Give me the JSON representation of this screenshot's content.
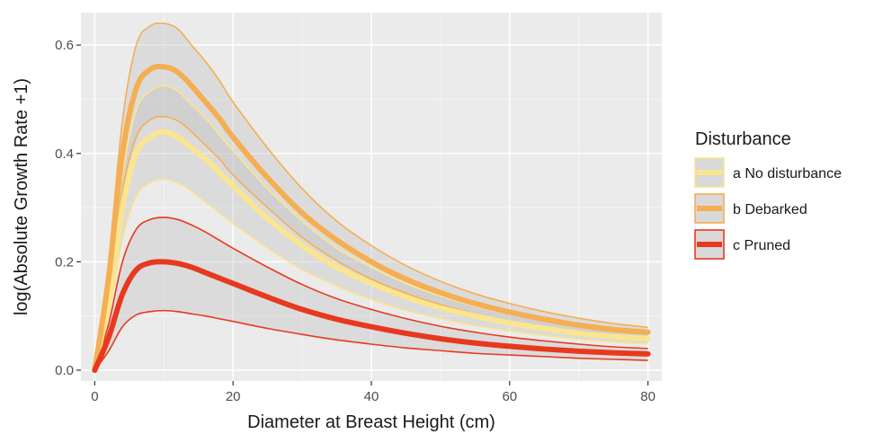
{
  "chart_data": {
    "type": "line",
    "xlabel": "Diameter at Breast Height (cm)",
    "ylabel": "log(Absolute Growth Rate +1)",
    "xlim": [
      -2,
      82
    ],
    "ylim": [
      -0.02,
      0.66
    ],
    "x_ticks": [
      0,
      20,
      40,
      60,
      80
    ],
    "y_ticks": [
      0.0,
      0.2,
      0.4,
      0.6
    ],
    "x_tick_labels": [
      "0",
      "20",
      "40",
      "60",
      "80"
    ],
    "y_tick_labels": [
      "0.0",
      "0.2",
      "0.4",
      "0.6"
    ],
    "grid": true,
    "legend": {
      "title": "Disturbance",
      "position": "right"
    },
    "x": [
      0,
      2,
      4,
      6,
      8,
      10,
      12,
      14,
      16,
      18,
      20,
      25,
      30,
      35,
      40,
      45,
      50,
      55,
      60,
      65,
      70,
      75,
      80
    ],
    "series": [
      {
        "name": "a No disturbance",
        "color": "#fbe58f",
        "values": [
          0.0,
          0.13,
          0.3,
          0.4,
          0.43,
          0.44,
          0.43,
          0.41,
          0.39,
          0.365,
          0.34,
          0.28,
          0.23,
          0.19,
          0.16,
          0.135,
          0.115,
          0.1,
          0.087,
          0.077,
          0.068,
          0.062,
          0.058
        ],
        "lower": [
          0.0,
          0.1,
          0.24,
          0.32,
          0.345,
          0.352,
          0.345,
          0.33,
          0.31,
          0.29,
          0.27,
          0.225,
          0.185,
          0.155,
          0.13,
          0.11,
          0.095,
          0.082,
          0.072,
          0.064,
          0.057,
          0.052,
          0.048
        ],
        "upper": [
          0.0,
          0.16,
          0.36,
          0.48,
          0.515,
          0.525,
          0.515,
          0.49,
          0.465,
          0.435,
          0.405,
          0.335,
          0.275,
          0.225,
          0.19,
          0.16,
          0.137,
          0.118,
          0.103,
          0.091,
          0.081,
          0.074,
          0.068
        ]
      },
      {
        "name": "b Debarked",
        "color": "#f5ae52",
        "values": [
          0.0,
          0.17,
          0.4,
          0.52,
          0.555,
          0.56,
          0.55,
          0.525,
          0.495,
          0.465,
          0.43,
          0.355,
          0.29,
          0.24,
          0.2,
          0.168,
          0.143,
          0.123,
          0.107,
          0.094,
          0.083,
          0.075,
          0.07
        ],
        "lower": [
          0.0,
          0.14,
          0.33,
          0.43,
          0.462,
          0.468,
          0.46,
          0.44,
          0.415,
          0.39,
          0.36,
          0.3,
          0.245,
          0.202,
          0.168,
          0.142,
          0.121,
          0.104,
          0.09,
          0.079,
          0.07,
          0.063,
          0.058
        ],
        "upper": [
          0.0,
          0.2,
          0.46,
          0.6,
          0.635,
          0.64,
          0.63,
          0.6,
          0.57,
          0.535,
          0.495,
          0.41,
          0.335,
          0.275,
          0.23,
          0.193,
          0.164,
          0.141,
          0.123,
          0.108,
          0.096,
          0.086,
          0.079
        ]
      },
      {
        "name": "c Pruned",
        "color": "#e8391e",
        "values": [
          0.0,
          0.06,
          0.14,
          0.185,
          0.198,
          0.2,
          0.197,
          0.19,
          0.18,
          0.17,
          0.16,
          0.135,
          0.112,
          0.094,
          0.08,
          0.068,
          0.058,
          0.05,
          0.044,
          0.039,
          0.035,
          0.032,
          0.03
        ],
        "lower": [
          0.0,
          0.035,
          0.08,
          0.102,
          0.108,
          0.11,
          0.108,
          0.104,
          0.1,
          0.095,
          0.09,
          0.077,
          0.066,
          0.056,
          0.048,
          0.041,
          0.036,
          0.031,
          0.028,
          0.025,
          0.022,
          0.02,
          0.018
        ],
        "upper": [
          0.0,
          0.085,
          0.2,
          0.26,
          0.278,
          0.282,
          0.278,
          0.268,
          0.255,
          0.24,
          0.225,
          0.19,
          0.158,
          0.132,
          0.112,
          0.095,
          0.081,
          0.07,
          0.061,
          0.054,
          0.048,
          0.043,
          0.04
        ]
      }
    ]
  }
}
